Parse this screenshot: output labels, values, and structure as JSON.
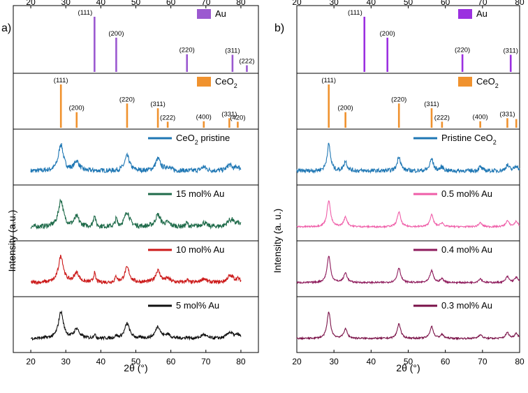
{
  "chart_data": [
    {
      "panel": "a)",
      "type": "line",
      "xlabel": "2θ (°)",
      "ylabel": "Intensity (a.u.)",
      "xlim": [
        15,
        85
      ],
      "xticks": [
        20,
        30,
        40,
        50,
        60,
        70,
        80
      ],
      "reference_patterns": [
        {
          "name": "Au",
          "color": "#9b59d0",
          "peaks": [
            {
              "x": 38.2,
              "h": 1.0,
              "label": "(111)"
            },
            {
              "x": 44.4,
              "h": 0.62,
              "label": "(200)"
            },
            {
              "x": 64.6,
              "h": 0.32,
              "label": "(220)"
            },
            {
              "x": 77.6,
              "h": 0.31,
              "label": "(311)"
            },
            {
              "x": 81.7,
              "h": 0.12,
              "label": "(222)"
            }
          ]
        },
        {
          "name": "CeO2",
          "legend_main": "CeO",
          "legend_sub": "2",
          "color": "#f0922e",
          "peaks": [
            {
              "x": 28.6,
              "h": 1.0,
              "label": "(111)"
            },
            {
              "x": 33.1,
              "h": 0.36,
              "label": "(200)"
            },
            {
              "x": 47.5,
              "h": 0.56,
              "label": "(220)"
            },
            {
              "x": 56.3,
              "h": 0.45,
              "label": "(311)"
            },
            {
              "x": 59.1,
              "h": 0.14,
              "label": "(222)"
            },
            {
              "x": 69.4,
              "h": 0.15,
              "label": "(400)"
            },
            {
              "x": 76.7,
              "h": 0.22,
              "label": "(331)"
            },
            {
              "x": 79.1,
              "h": 0.14,
              "label": "(420)"
            }
          ]
        }
      ],
      "series": [
        {
          "name": "CeO2 pristine",
          "legend_main": "CeO",
          "legend_sub": "2",
          "legend_rest": " pristine",
          "color": "#1f77b4",
          "au": 0,
          "noise": 0.09
        },
        {
          "name": "15 mol% Au",
          "color": "#1f6b4a",
          "au": 0.45,
          "noise": 0.09
        },
        {
          "name": "10 mol% Au",
          "color": "#cc1a1a",
          "au": 0.35,
          "noise": 0.07
        },
        {
          "name": "5 mol% Au",
          "color": "#111111",
          "au": 0.15,
          "noise": 0.06
        }
      ]
    },
    {
      "panel": "b)",
      "type": "line",
      "xlabel": "2θ (°)",
      "ylabel": "Intensity (a. u.)",
      "xlim": [
        20,
        80
      ],
      "xticks": [
        20,
        30,
        40,
        50,
        60,
        70,
        80
      ],
      "reference_patterns": [
        {
          "name": "Au",
          "color": "#9b30e0",
          "peaks": [
            {
              "x": 38.2,
              "h": 1.0,
              "label": "(111)"
            },
            {
              "x": 44.4,
              "h": 0.62,
              "label": "(200)"
            },
            {
              "x": 64.6,
              "h": 0.32,
              "label": "(220)"
            },
            {
              "x": 77.6,
              "h": 0.31,
              "label": "(311)"
            }
          ]
        },
        {
          "name": "CeO2",
          "legend_main": "CeO",
          "legend_sub": "2",
          "color": "#f0922e",
          "peaks": [
            {
              "x": 28.6,
              "h": 1.0,
              "label": "(111)"
            },
            {
              "x": 33.1,
              "h": 0.36,
              "label": "(200)"
            },
            {
              "x": 47.5,
              "h": 0.56,
              "label": "(220)"
            },
            {
              "x": 56.3,
              "h": 0.45,
              "label": "(311)"
            },
            {
              "x": 59.1,
              "h": 0.14,
              "label": "(222)"
            },
            {
              "x": 69.4,
              "h": 0.15,
              "label": "(400)"
            },
            {
              "x": 76.7,
              "h": 0.22,
              "label": "(331)"
            },
            {
              "x": 79.1,
              "h": 0.2,
              "label": ""
            }
          ]
        }
      ],
      "series": [
        {
          "name": "Pristine CeO2",
          "legend_main": "Pristine CeO",
          "legend_sub": "2",
          "legend_rest": "",
          "color": "#1f77b4",
          "au": 0,
          "noise": 0.08
        },
        {
          "name": "0.5 mol% Au",
          "color": "#ef5da8",
          "au": 0,
          "noise": 0.03
        },
        {
          "name": "0.4 mol% Au",
          "color": "#8e1b5c",
          "au": 0,
          "noise": 0.03
        },
        {
          "name": "0.3 mol% Au",
          "color": "#7a1248",
          "au": 0,
          "noise": 0.03
        }
      ]
    }
  ]
}
